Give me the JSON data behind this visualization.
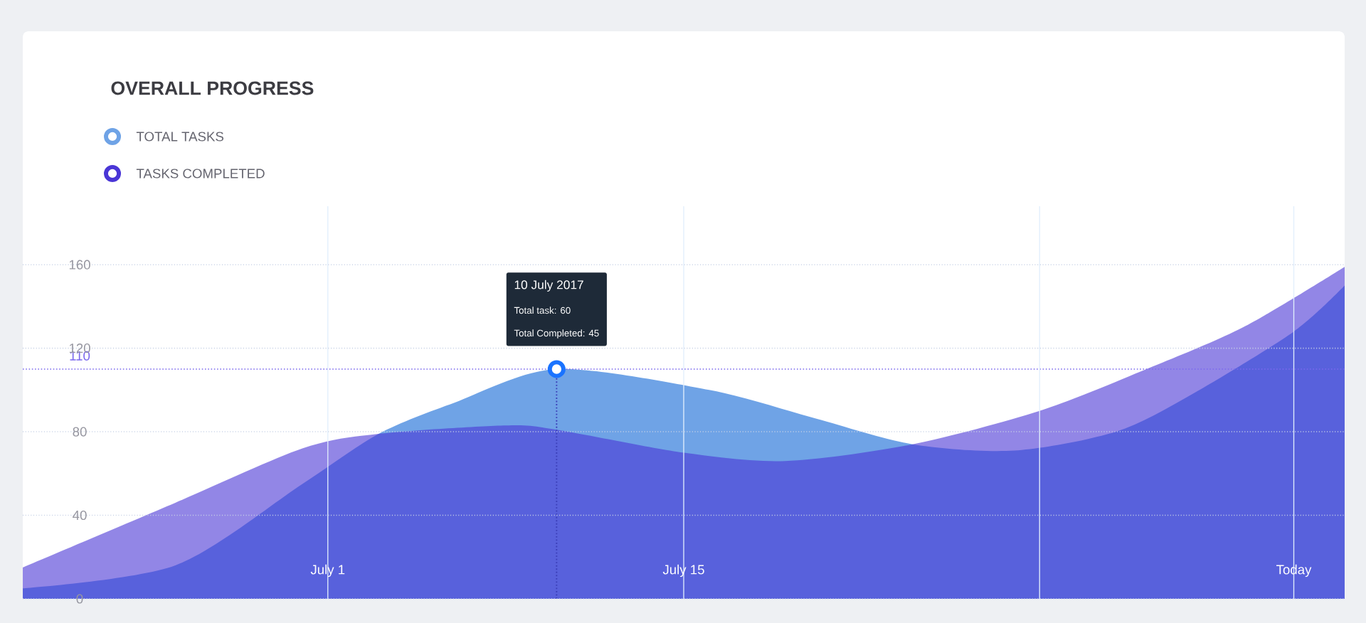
{
  "chart_data": {
    "type": "area",
    "title": "OVERALL PROGRESS",
    "series": [
      {
        "name": "TOTAL TASKS",
        "color": "#6fa3e6",
        "x": [
          "2017-06-19",
          "2017-06-25",
          "2017-06-30",
          "2017-07-03",
          "2017-07-06",
          "2017-07-10",
          "2017-07-16",
          "2017-07-20",
          "2017-07-24",
          "2017-07-28",
          "2017-08-01",
          "2017-08-04",
          "2017-08-08",
          "2017-08-10"
        ],
        "values": [
          5,
          16,
          55,
          79,
          94,
          110,
          100,
          87,
          74,
          71,
          80,
          98,
          128,
          150
        ]
      },
      {
        "name": "TASKS COMPLETED",
        "color": "#4a36d6",
        "x": [
          "2017-06-19",
          "2017-06-25",
          "2017-06-30",
          "2017-07-03",
          "2017-07-08",
          "2017-07-10",
          "2017-07-15",
          "2017-07-19",
          "2017-07-24",
          "2017-07-29",
          "2017-08-02",
          "2017-08-06",
          "2017-08-10"
        ],
        "values": [
          15,
          46,
          72,
          79,
          83,
          81,
          70,
          66,
          74,
          90,
          109,
          130,
          159
        ]
      }
    ],
    "xlim": [
      "2017-06-19",
      "2017-08-10"
    ],
    "xticks": [
      {
        "value": "2017-07-01",
        "label": "July 1"
      },
      {
        "value": "2017-07-15",
        "label": "July 15"
      },
      {
        "value": "2017-07-29",
        "label": null
      },
      {
        "value": "2017-08-08",
        "label": "Today"
      }
    ],
    "ylim": [
      0,
      188
    ],
    "yticks": [
      0,
      40,
      80,
      120,
      160
    ],
    "grid": true,
    "legend": "top left",
    "ref_lines": [
      {
        "axis": "y",
        "value": 110,
        "label": "110",
        "color": "#7b68ee",
        "line_style": "dotted"
      },
      {
        "axis": "x",
        "value": "2017-07-10",
        "color": "#3b3fb8",
        "line_style": "dotted"
      }
    ],
    "annotations": [
      "10 July 2017",
      "Total task: 60",
      "Total Completed: 45"
    ]
  }
}
